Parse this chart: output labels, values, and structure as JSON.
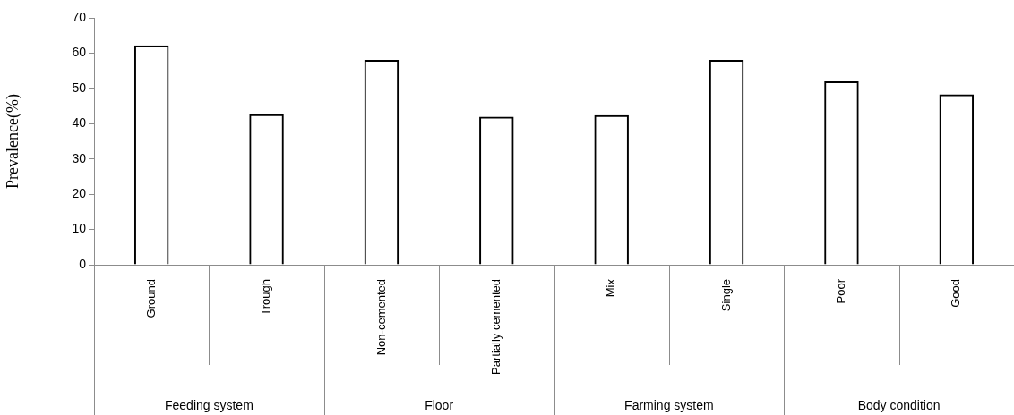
{
  "chart_data": {
    "type": "bar",
    "ylabel": "Prevalence(%)",
    "categories": [
      "Ground",
      "Trough",
      "Non-cemented",
      "Partially cemented",
      "Mix",
      "Single",
      "Poor",
      "Good"
    ],
    "values": [
      62.2,
      42.7,
      58.1,
      42.0,
      42.4,
      58.1,
      52.0,
      48.3
    ],
    "color": "#000000",
    "ylim": [
      0,
      70
    ],
    "yticks": [
      0,
      10,
      20,
      30,
      40,
      50,
      60,
      70
    ],
    "annotations": [
      "Feeding system",
      "Floor",
      "Farming system",
      "Body condition"
    ]
  }
}
